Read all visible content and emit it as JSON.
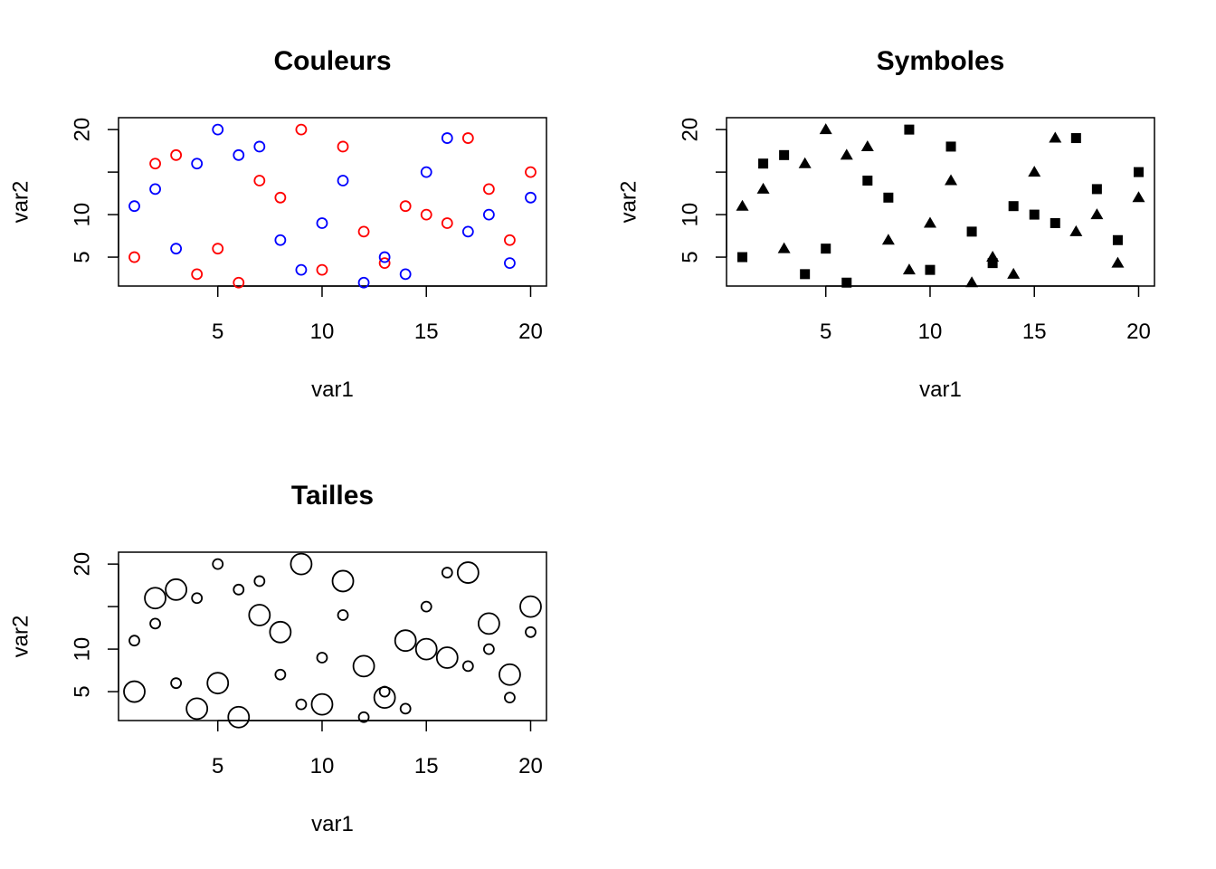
{
  "chart_data": [
    {
      "type": "scatter",
      "title": "Couleurs",
      "xlabel": "var1",
      "ylabel": "var2",
      "xlim": [
        0.24,
        20.76
      ],
      "ylim": [
        1.6,
        21.4
      ],
      "xticks": [
        5,
        10,
        15,
        20
      ],
      "yticks": [
        5,
        10,
        15,
        20
      ],
      "ytick_labels": [
        "5",
        "10",
        "",
        "20"
      ],
      "grid": false,
      "marker": "open-circle",
      "series": [
        {
          "color": "#ff0000",
          "points": [
            [
              1,
              5
            ],
            [
              2,
              16
            ],
            [
              3,
              17
            ],
            [
              4,
              3
            ],
            [
              5,
              6
            ],
            [
              6,
              2
            ],
            [
              7,
              14
            ],
            [
              8,
              12
            ],
            [
              9,
              20
            ],
            [
              10,
              3.5
            ],
            [
              11,
              18
            ],
            [
              12,
              8
            ],
            [
              13,
              4.3
            ],
            [
              14,
              11
            ],
            [
              15,
              10
            ],
            [
              16,
              9
            ],
            [
              17,
              19
            ],
            [
              18,
              13
            ],
            [
              19,
              7
            ],
            [
              20,
              15
            ]
          ]
        },
        {
          "color": "#0000ff",
          "points": [
            [
              1,
              11
            ],
            [
              2,
              13
            ],
            [
              3,
              6
            ],
            [
              4,
              16
            ],
            [
              5,
              20
            ],
            [
              6,
              17
            ],
            [
              7,
              18
            ],
            [
              8,
              7
            ],
            [
              9,
              3.5
            ],
            [
              10,
              9
            ],
            [
              11,
              14
            ],
            [
              12,
              2
            ],
            [
              13,
              5
            ],
            [
              14,
              3
            ],
            [
              15,
              15
            ],
            [
              16,
              19
            ],
            [
              17,
              8
            ],
            [
              18,
              10
            ],
            [
              19,
              4.3
            ],
            [
              20,
              12
            ]
          ]
        }
      ]
    },
    {
      "type": "scatter",
      "title": "Symboles",
      "xlabel": "var1",
      "ylabel": "var2",
      "xlim": [
        0.24,
        20.76
      ],
      "ylim": [
        1.6,
        21.4
      ],
      "xticks": [
        5,
        10,
        15,
        20
      ],
      "yticks": [
        5,
        10,
        15,
        20
      ],
      "ytick_labels": [
        "5",
        "10",
        "",
        "20"
      ],
      "grid": false,
      "series": [
        {
          "marker": "filled-square",
          "color": "#000000",
          "points": [
            [
              1,
              5
            ],
            [
              2,
              16
            ],
            [
              3,
              17
            ],
            [
              4,
              3
            ],
            [
              5,
              6
            ],
            [
              6,
              2
            ],
            [
              7,
              14
            ],
            [
              8,
              12
            ],
            [
              9,
              20
            ],
            [
              10,
              3.5
            ],
            [
              11,
              18
            ],
            [
              12,
              8
            ],
            [
              13,
              4.3
            ],
            [
              14,
              11
            ],
            [
              15,
              10
            ],
            [
              16,
              9
            ],
            [
              17,
              19
            ],
            [
              18,
              13
            ],
            [
              19,
              7
            ],
            [
              20,
              15
            ]
          ]
        },
        {
          "marker": "filled-triangle",
          "color": "#000000",
          "points": [
            [
              1,
              11
            ],
            [
              2,
              13
            ],
            [
              3,
              6
            ],
            [
              4,
              16
            ],
            [
              5,
              20
            ],
            [
              6,
              17
            ],
            [
              7,
              18
            ],
            [
              8,
              7
            ],
            [
              9,
              3.5
            ],
            [
              10,
              9
            ],
            [
              11,
              14
            ],
            [
              12,
              2
            ],
            [
              13,
              5
            ],
            [
              14,
              3
            ],
            [
              15,
              15
            ],
            [
              16,
              19
            ],
            [
              17,
              8
            ],
            [
              18,
              10
            ],
            [
              19,
              4.3
            ],
            [
              20,
              12
            ]
          ]
        }
      ]
    },
    {
      "type": "scatter",
      "title": "Tailles",
      "xlabel": "var1",
      "ylabel": "var2",
      "xlim": [
        0.24,
        20.76
      ],
      "ylim": [
        1.6,
        21.4
      ],
      "xticks": [
        5,
        10,
        15,
        20
      ],
      "yticks": [
        5,
        10,
        15,
        20
      ],
      "ytick_labels": [
        "5",
        "10",
        "",
        "20"
      ],
      "grid": false,
      "marker": "open-circle",
      "marker_size_scale": "relative size (1 = small, 2 = large)",
      "series": [
        {
          "color": "#000000",
          "points": [
            [
              1,
              5,
              2
            ],
            [
              2,
              16,
              2
            ],
            [
              3,
              17,
              2
            ],
            [
              4,
              3,
              2
            ],
            [
              5,
              6,
              2
            ],
            [
              6,
              2,
              2
            ],
            [
              7,
              14,
              2
            ],
            [
              8,
              12,
              2
            ],
            [
              9,
              20,
              2
            ],
            [
              10,
              3.5,
              2
            ],
            [
              11,
              18,
              2
            ],
            [
              12,
              8,
              2
            ],
            [
              13,
              4.3,
              2
            ],
            [
              14,
              11,
              2
            ],
            [
              15,
              10,
              2
            ],
            [
              16,
              9,
              2
            ],
            [
              17,
              19,
              2
            ],
            [
              18,
              13,
              2
            ],
            [
              19,
              7,
              2
            ],
            [
              20,
              15,
              2
            ]
          ]
        },
        {
          "color": "#000000",
          "points": [
            [
              1,
              11,
              1
            ],
            [
              2,
              13,
              1
            ],
            [
              3,
              6,
              1
            ],
            [
              4,
              16,
              1
            ],
            [
              5,
              20,
              1
            ],
            [
              6,
              17,
              1
            ],
            [
              7,
              18,
              1
            ],
            [
              8,
              7,
              1
            ],
            [
              9,
              3.5,
              1
            ],
            [
              10,
              9,
              1
            ],
            [
              11,
              14,
              1
            ],
            [
              12,
              2,
              1
            ],
            [
              13,
              5,
              1
            ],
            [
              14,
              3,
              1
            ],
            [
              15,
              15,
              1
            ],
            [
              16,
              19,
              1
            ],
            [
              17,
              8,
              1
            ],
            [
              18,
              10,
              1
            ],
            [
              19,
              4.3,
              1
            ],
            [
              20,
              12,
              1
            ]
          ]
        }
      ]
    }
  ]
}
